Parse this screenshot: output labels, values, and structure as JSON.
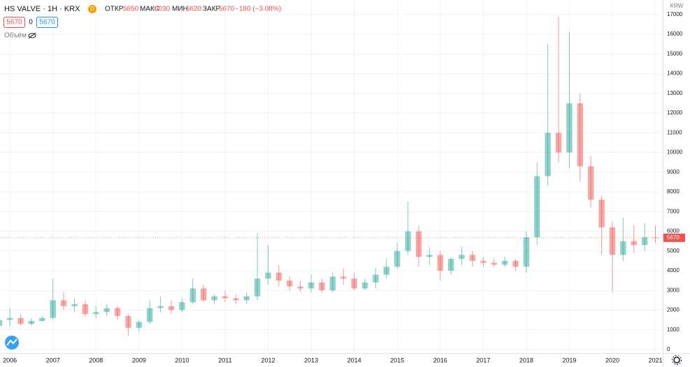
{
  "header": {
    "symbol": "HS VALVE · 1H · KRX",
    "badge": "D",
    "open_label": "ОТКР",
    "open": 5850,
    "high_label": "МАКС",
    "high": 6030,
    "low_label": "МИН",
    "low": 5620,
    "close_label": "ЗАКР",
    "close": 5670,
    "change": "−180 (−3.08%)",
    "bid": 5670,
    "spread": 0,
    "ask": 5670,
    "volume_label": "Объём"
  },
  "chart_data": {
    "type": "candlestick",
    "up_color": "#26a69a",
    "down_color": "#ef5350",
    "grid": true,
    "y_axis_label": "KRW",
    "last_price": 5670,
    "xlim": [
      2005.77,
      2021.17
    ],
    "xticks": [
      2006,
      2007,
      2008,
      2009,
      2010,
      2011,
      2012,
      2013,
      2014,
      2015,
      2016,
      2017,
      2018,
      2019,
      2020,
      2021
    ],
    "ylim": [
      -180,
      17740
    ],
    "yticks": [
      0,
      1000,
      2000,
      3000,
      4000,
      5000,
      6000,
      7000,
      8000,
      9000,
      10000,
      11000,
      12000,
      13000,
      14000,
      15000,
      16000,
      17000
    ],
    "x": [
      2005.75,
      2006,
      2006.25,
      2006.5,
      2006.75,
      2007,
      2007.25,
      2007.5,
      2007.75,
      2008,
      2008.25,
      2008.5,
      2008.75,
      2009,
      2009.25,
      2009.5,
      2009.75,
      2010,
      2010.25,
      2010.5,
      2010.75,
      2011,
      2011.25,
      2011.5,
      2011.75,
      2012,
      2012.25,
      2012.5,
      2012.75,
      2013,
      2013.25,
      2013.5,
      2013.75,
      2014,
      2014.25,
      2014.5,
      2014.75,
      2015,
      2015.25,
      2015.5,
      2015.75,
      2016,
      2016.25,
      2016.5,
      2016.75,
      2017,
      2017.25,
      2017.5,
      2017.75,
      2018,
      2018.25,
      2018.5,
      2018.75,
      2019,
      2019.25,
      2019.5,
      2019.75,
      2020,
      2020.25,
      2020.5,
      2020.75,
      2021
    ],
    "open": [
      1200,
      1500,
      1600,
      1300,
      1450,
      1600,
      2500,
      2200,
      2300,
      1800,
      1900,
      2100,
      1700,
      1100,
      1400,
      2100,
      2200,
      2000,
      2400,
      3100,
      2500,
      2700,
      2600,
      2500,
      2700,
      3600,
      3900,
      3500,
      3200,
      3100,
      3400,
      3000,
      3700,
      3600,
      3100,
      3400,
      3800,
      4200,
      5000,
      6000,
      4700,
      4800,
      4000,
      4600,
      4800,
      4500,
      4400,
      4300,
      4500,
      4200,
      5700,
      8800,
      11000,
      10000,
      12500,
      9300,
      7600,
      6200,
      4800,
      5500,
      5300,
      5700
    ],
    "high": [
      2200,
      2100,
      1800,
      1600,
      1700,
      3600,
      2900,
      2600,
      2500,
      2200,
      2300,
      2200,
      1800,
      1500,
      2500,
      2700,
      2500,
      2600,
      3600,
      3300,
      2800,
      3000,
      2800,
      2900,
      5900,
      5300,
      4300,
      3700,
      3500,
      3800,
      3600,
      3900,
      4100,
      3900,
      3600,
      4100,
      4600,
      5400,
      7500,
      6300,
      5200,
      5000,
      4700,
      5200,
      5000,
      4700,
      4600,
      4700,
      4600,
      6000,
      9500,
      15500,
      16900,
      16100,
      13000,
      9800,
      7800,
      6500,
      6700,
      6300,
      6400,
      6300
    ],
    "low": [
      900,
      1200,
      1200,
      1200,
      1400,
      1500,
      2000,
      1900,
      1700,
      1600,
      1700,
      1500,
      700,
      900,
      1300,
      1900,
      1800,
      1900,
      2300,
      2400,
      2300,
      2400,
      2300,
      2300,
      2500,
      3300,
      3200,
      3000,
      2900,
      2900,
      2900,
      2900,
      3300,
      3000,
      3000,
      3100,
      3600,
      4100,
      4800,
      4200,
      4300,
      3500,
      3800,
      4300,
      4200,
      4200,
      4200,
      4200,
      4000,
      3900,
      5300,
      8300,
      9500,
      9200,
      8500,
      7200,
      4800,
      2900,
      4500,
      4900,
      5000,
      5400
    ],
    "close": [
      1500,
      1600,
      1300,
      1450,
      1600,
      2500,
      2200,
      2300,
      1800,
      1900,
      2100,
      1700,
      1100,
      1400,
      2100,
      2200,
      2000,
      2400,
      3100,
      2500,
      2700,
      2600,
      2500,
      2700,
      3600,
      3900,
      3500,
      3200,
      3100,
      3400,
      3000,
      3700,
      3600,
      3100,
      3400,
      3800,
      4200,
      5000,
      6000,
      4700,
      4800,
      4000,
      4600,
      4800,
      4500,
      4400,
      4300,
      4500,
      4200,
      5700,
      8800,
      11000,
      10000,
      12500,
      9300,
      7600,
      6200,
      4800,
      5500,
      5300,
      5700,
      5670
    ]
  }
}
